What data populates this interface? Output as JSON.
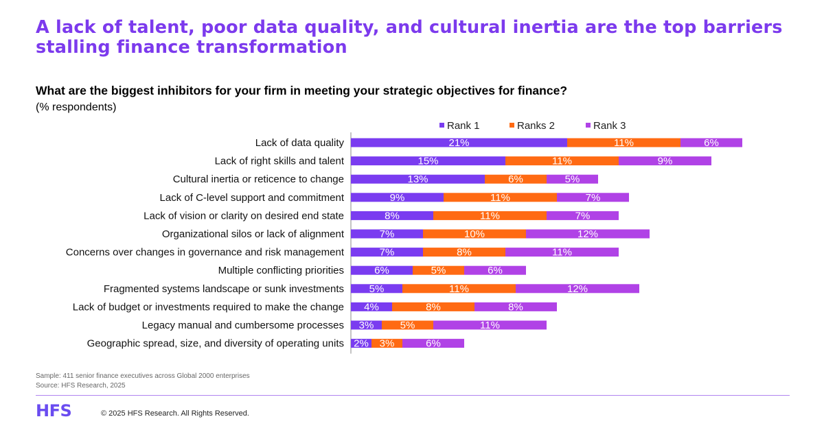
{
  "header": {
    "headline": "A lack of talent, poor data quality, and cultural inertia are the top barriers stalling finance transformation",
    "question": "What are the biggest inhibitors for your firm in meeting your strategic objectives for finance?",
    "unit": "(% respondents)"
  },
  "chart_data": {
    "type": "bar",
    "orientation": "horizontal",
    "stacked": true,
    "categories": [
      "Lack of data quality",
      "Lack of right skills and talent",
      "Cultural inertia or reticence to change",
      "Lack of C-level support and commitment",
      "Lack of vision or clarity on desired end state",
      "Organizational silos or lack of alignment",
      "Concerns over changes in governance and risk management",
      "Multiple conflicting priorities",
      "Fragmented systems landscape or sunk investments",
      "Lack of budget or investments required to make the change",
      "Legacy manual and cumbersome processes",
      "Geographic spread, size, and diversity of operating units"
    ],
    "series": [
      {
        "name": "Rank 1",
        "color": "#7a3cf0",
        "values": [
          21,
          15,
          13,
          9,
          8,
          7,
          7,
          6,
          5,
          4,
          3,
          2
        ]
      },
      {
        "name": "Ranks 2",
        "color": "#ff6a13",
        "values": [
          11,
          11,
          6,
          11,
          11,
          10,
          8,
          5,
          11,
          8,
          5,
          3
        ]
      },
      {
        "name": "Rank 3",
        "color": "#b042e6",
        "values": [
          6,
          9,
          5,
          7,
          7,
          12,
          11,
          6,
          12,
          8,
          11,
          6
        ]
      }
    ],
    "value_suffix": "%",
    "legend_position": "top",
    "grid": false
  },
  "footer": {
    "sample": "Sample: 411 senior finance executives across Global 2000 enterprises",
    "source": "Source: HFS Research, 2025",
    "logo": "HFS",
    "copyright": "© 2025 HFS Research. All Rights Reserved."
  }
}
